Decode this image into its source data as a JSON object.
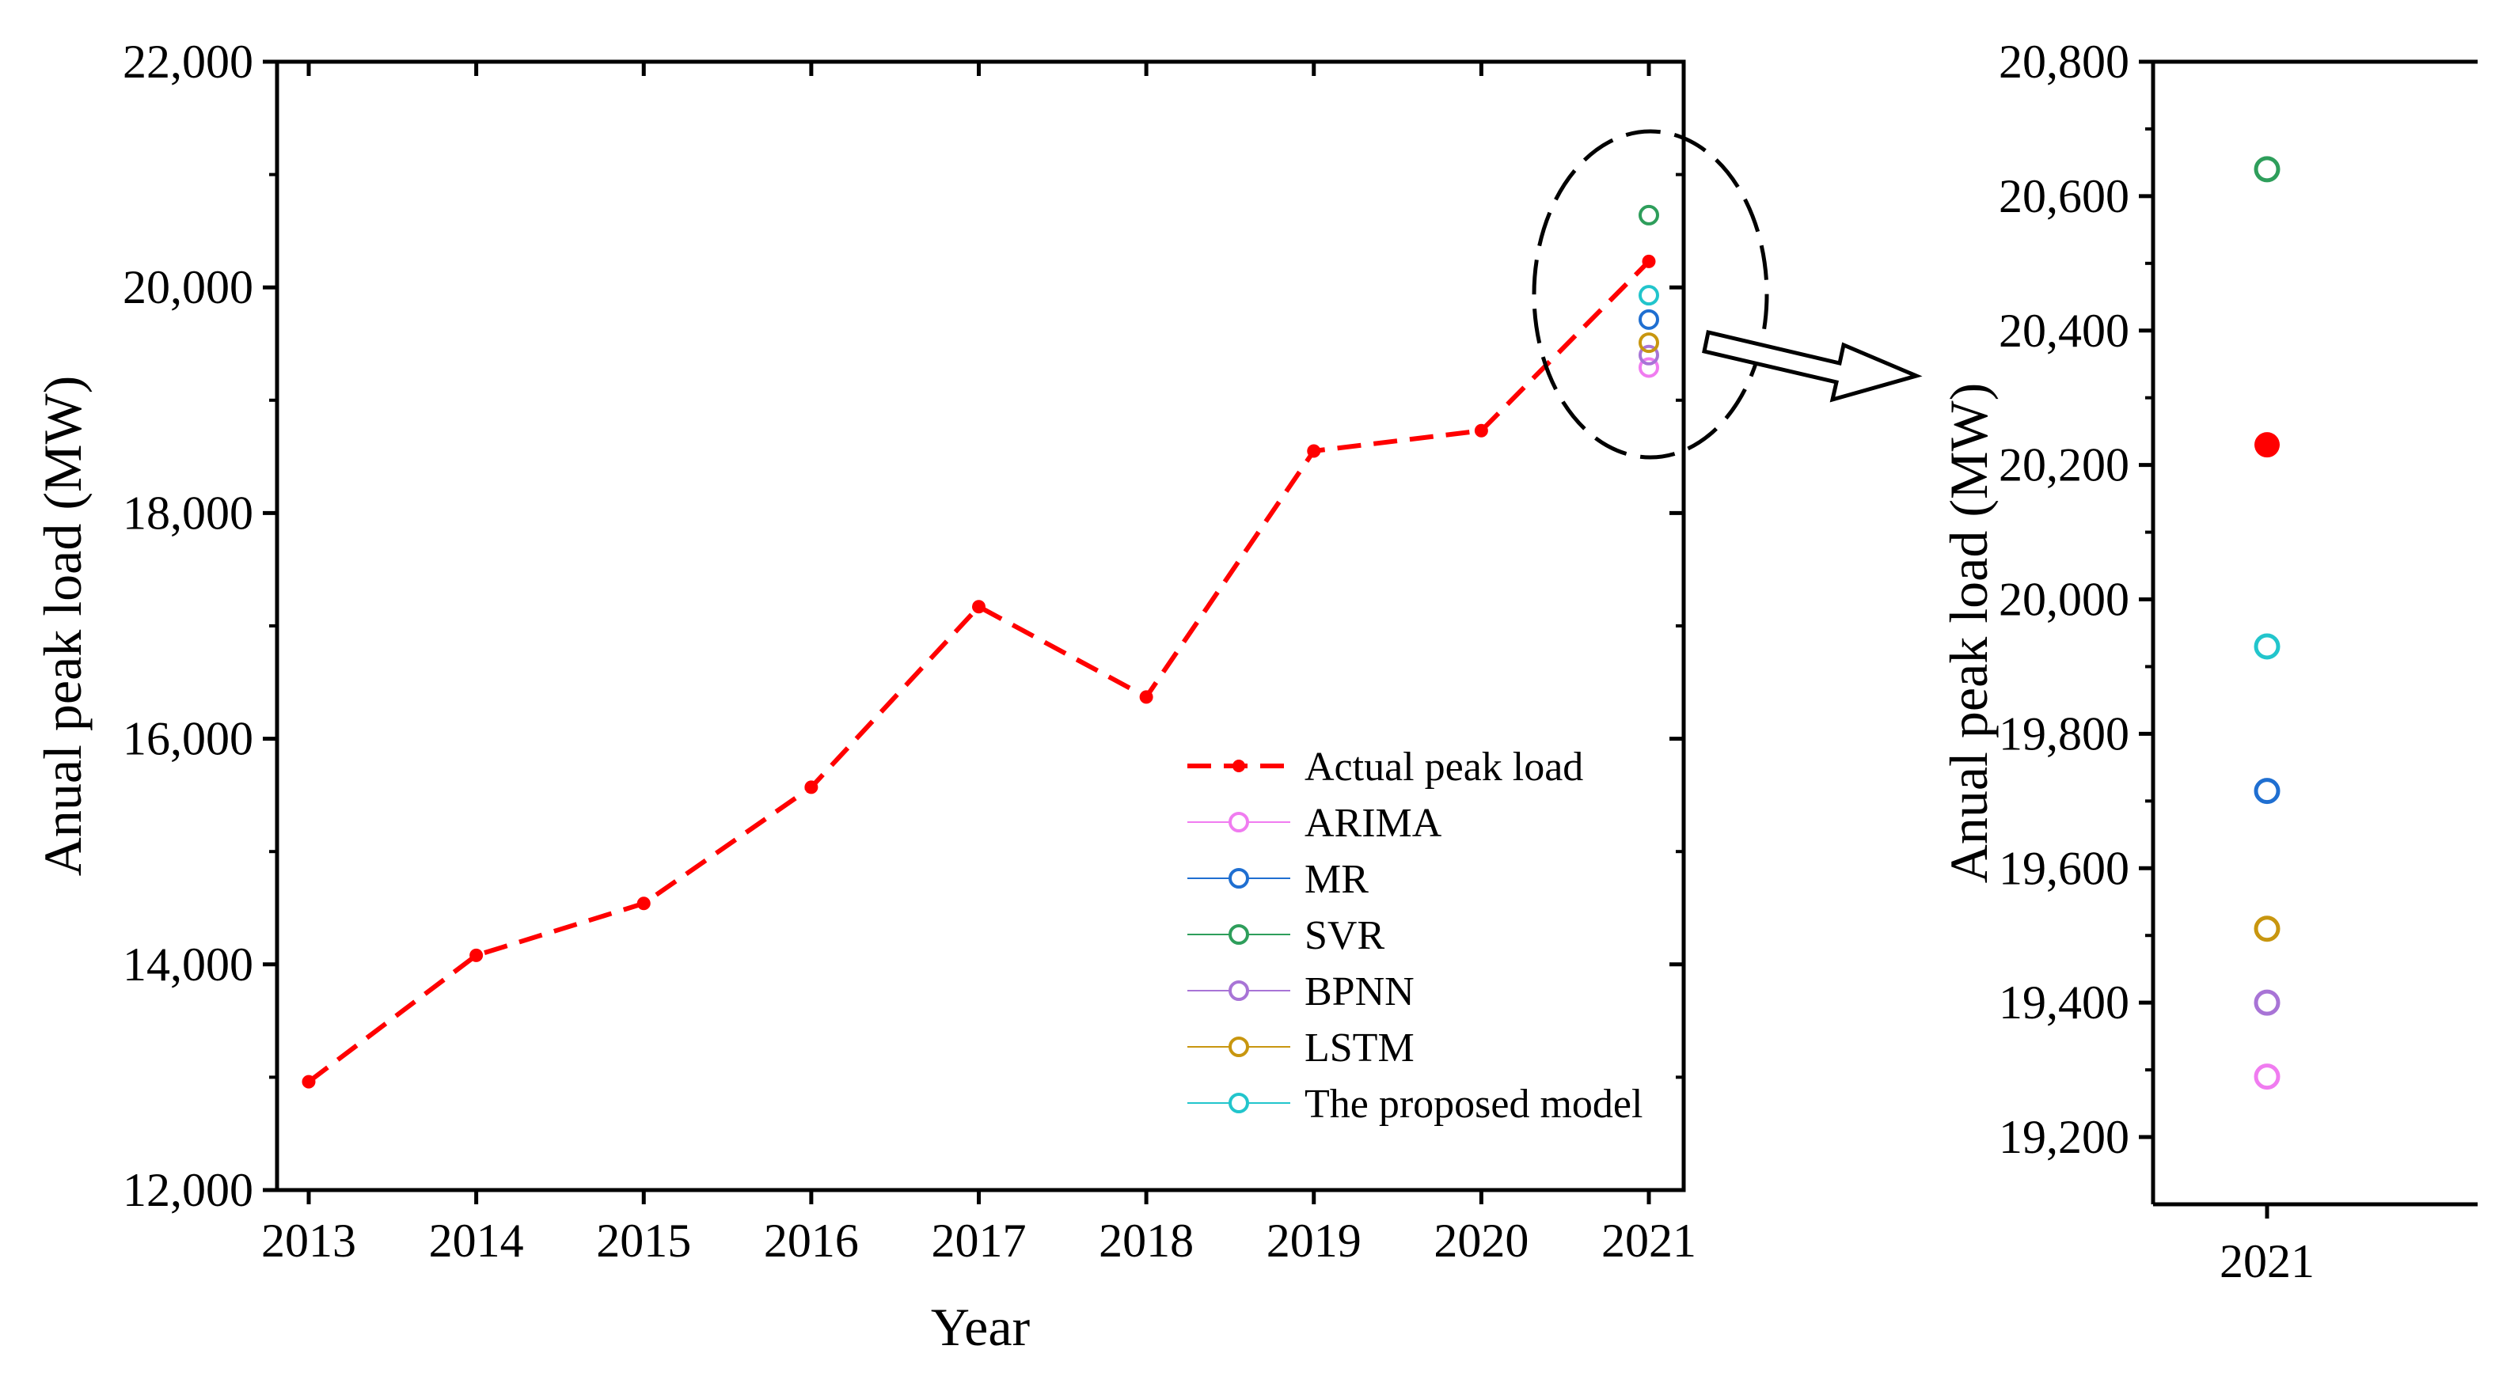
{
  "chart_data": [
    {
      "type": "line",
      "panel": "main",
      "title": "",
      "xlabel": "Year",
      "ylabel": "Anual peak load (MW)",
      "categories": [
        "2013",
        "2014",
        "2015",
        "2016",
        "2017",
        "2018",
        "2019",
        "2020",
        "2021"
      ],
      "ylim": [
        12000,
        22000
      ],
      "yticks": [
        12000,
        14000,
        16000,
        18000,
        20000,
        22000
      ],
      "ytick_labels": [
        "12,000",
        "14,000",
        "16,000",
        "18,000",
        "20,000",
        "22,000"
      ],
      "grid": false,
      "legend_position": "bottom-right",
      "series": [
        {
          "name": "Actual peak load",
          "color": "#FF0000",
          "style": "dashed-line-filled-dot",
          "values": [
            12960,
            14080,
            14540,
            15570,
            17170,
            16370,
            18550,
            18730,
            20230
          ]
        },
        {
          "name": "ARIMA",
          "color": "#F07CF0",
          "style": "hollow-circle",
          "values": [
            null,
            null,
            null,
            null,
            null,
            null,
            null,
            null,
            19290
          ]
        },
        {
          "name": "MR",
          "color": "#1F6FD1",
          "style": "hollow-circle",
          "values": [
            null,
            null,
            null,
            null,
            null,
            null,
            null,
            null,
            19715
          ]
        },
        {
          "name": "SVR",
          "color": "#2E9E5B",
          "style": "hollow-circle",
          "values": [
            null,
            null,
            null,
            null,
            null,
            null,
            null,
            null,
            20640
          ]
        },
        {
          "name": "BPNN",
          "color": "#A874D6",
          "style": "hollow-circle",
          "values": [
            null,
            null,
            null,
            null,
            null,
            null,
            null,
            null,
            19400
          ]
        },
        {
          "name": "LSTM",
          "color": "#C8960F",
          "style": "hollow-circle",
          "values": [
            null,
            null,
            null,
            null,
            null,
            null,
            null,
            null,
            19510
          ]
        },
        {
          "name": "The proposed model",
          "color": "#22C5CC",
          "style": "hollow-circle",
          "values": [
            null,
            null,
            null,
            null,
            null,
            null,
            null,
            null,
            19930
          ]
        }
      ],
      "annotation": "dashed ellipse around 2021 values with arrow pointing to zoom panel"
    },
    {
      "type": "scatter",
      "panel": "zoom",
      "title": "",
      "xlabel": "",
      "ylabel": "Anual peak load (MW)",
      "categories": [
        "2021"
      ],
      "ylim": [
        19100,
        20800
      ],
      "yticks": [
        19200,
        19400,
        19600,
        19800,
        20000,
        20200,
        20400,
        20600,
        20800
      ],
      "ytick_labels": [
        "19,200",
        "19,400",
        "19,600",
        "19,800",
        "20,000",
        "20,200",
        "20,400",
        "20,600",
        "20,800"
      ],
      "grid": false,
      "points": [
        {
          "name": "SVR",
          "value": 20640,
          "color": "#2E9E5B",
          "filled": false
        },
        {
          "name": "Actual peak load",
          "value": 20230,
          "color": "#FF0000",
          "filled": true
        },
        {
          "name": "The proposed model",
          "value": 19930,
          "color": "#22C5CC",
          "filled": false
        },
        {
          "name": "MR",
          "value": 19715,
          "color": "#1F6FD1",
          "filled": false
        },
        {
          "name": "LSTM",
          "value": 19510,
          "color": "#C8960F",
          "filled": false
        },
        {
          "name": "BPNN",
          "value": 19400,
          "color": "#A874D6",
          "filled": false
        },
        {
          "name": "ARIMA",
          "value": 19290,
          "color": "#F07CF0",
          "filled": false
        }
      ]
    }
  ]
}
